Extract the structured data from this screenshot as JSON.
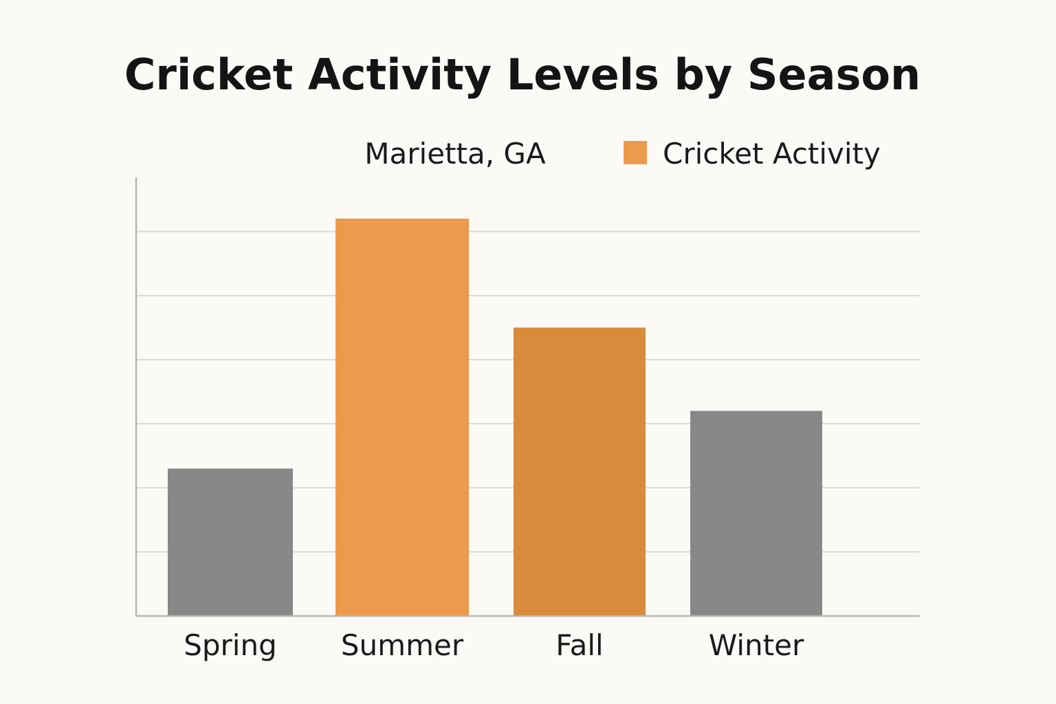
{
  "chart_data": {
    "type": "bar",
    "title": "Cricket Activity Levels by Season",
    "subtitle": "Marietta, GA",
    "legend": {
      "label": "Cricket Activity",
      "color": "#ec9a4c",
      "placement": "top-right"
    },
    "categories": [
      "Spring",
      "Summer",
      "Fall",
      "Winter"
    ],
    "values": [
      2.3,
      6.2,
      4.5,
      3.2
    ],
    "bar_colors": [
      "#888886",
      "#ec9a4c",
      "#d98b3c",
      "#888886"
    ],
    "ylim": [
      0,
      6.5
    ],
    "grid": true,
    "xlabel": "",
    "ylabel": ""
  }
}
